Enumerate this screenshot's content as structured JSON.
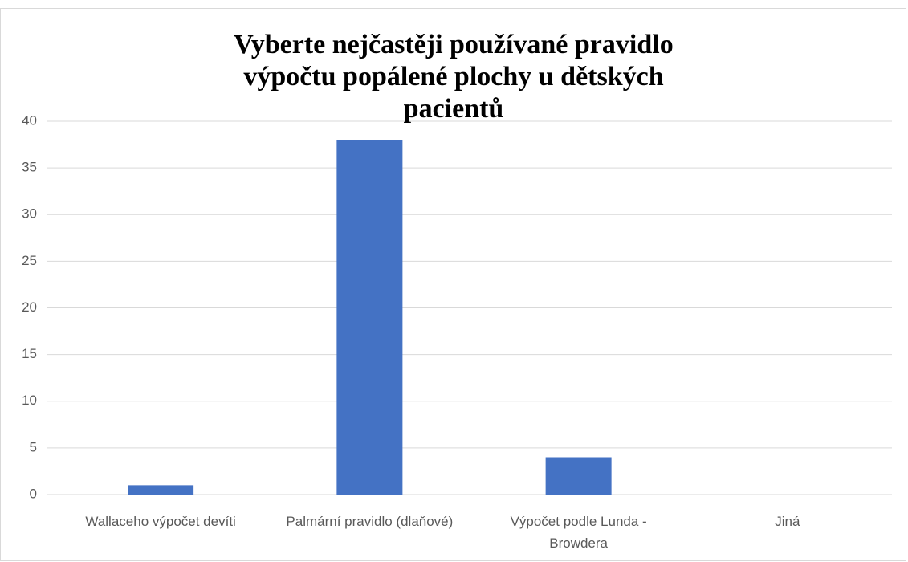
{
  "chart_data": {
    "type": "bar",
    "title": "Vyberte nejčastěji používané pravidlo výpočtu popálené plochy u dětských pacientů",
    "categories": [
      "Wallaceho výpočet devíti",
      "Palmární pravidlo (dlaňové)",
      "Výpočet podle Lunda - Browdera",
      "Jiná"
    ],
    "values": [
      1,
      38,
      4,
      0
    ],
    "color": "#4472c4",
    "ylim": [
      0,
      40
    ],
    "yticks": [
      0,
      5,
      10,
      15,
      20,
      25,
      30,
      35,
      40
    ],
    "grid": true
  }
}
